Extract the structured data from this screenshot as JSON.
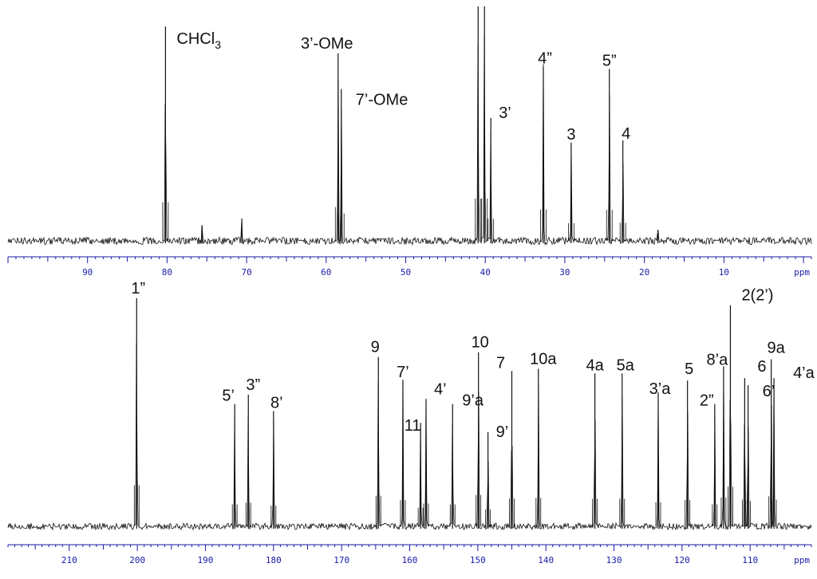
{
  "chart_data": [
    {
      "type": "line",
      "title": "",
      "xlabel": "ppm",
      "ylabel": "",
      "x_reversed": true,
      "xlim": [
        100,
        -1
      ],
      "tick_labels": [
        "90",
        "80",
        "70",
        "60",
        "50",
        "40",
        "30",
        "20",
        "10"
      ],
      "tick_values": [
        90,
        80,
        70,
        60,
        50,
        40,
        30,
        20,
        10
      ],
      "peaks": [
        {
          "x": 80.2,
          "height": 0.96,
          "label": "CHCl3",
          "label_main": "CHCl",
          "label_sub": "3"
        },
        {
          "x": 75.6,
          "height": 0.07,
          "label": ""
        },
        {
          "x": 70.6,
          "height": 0.1,
          "label": ""
        },
        {
          "x": 58.5,
          "height": 0.84,
          "label": "3’-OMe"
        },
        {
          "x": 58.1,
          "height": 0.68,
          "label": "7’-OMe"
        },
        {
          "x": 40.9,
          "height": 1.05,
          "label": ""
        },
        {
          "x": 40.1,
          "height": 1.05,
          "label": ""
        },
        {
          "x": 39.3,
          "height": 0.55,
          "label": "3’"
        },
        {
          "x": 32.7,
          "height": 0.78,
          "label": "4”"
        },
        {
          "x": 29.2,
          "height": 0.44,
          "label": "3"
        },
        {
          "x": 24.4,
          "height": 0.77,
          "label": "5”"
        },
        {
          "x": 22.7,
          "height": 0.45,
          "label": "4"
        },
        {
          "x": 18.3,
          "height": 0.05,
          "label": ""
        }
      ]
    },
    {
      "type": "line",
      "title": "",
      "xlabel": "ppm",
      "ylabel": "",
      "x_reversed": true,
      "xlim": [
        219,
        101
      ],
      "tick_labels": [
        "210",
        "200",
        "190",
        "180",
        "170",
        "160",
        "150",
        "140",
        "130",
        "120",
        "110"
      ],
      "tick_values": [
        210,
        200,
        190,
        180,
        170,
        160,
        150,
        140,
        130,
        120,
        110
      ],
      "peaks": [
        {
          "x": 200.1,
          "height": 0.97,
          "label": "1”"
        },
        {
          "x": 185.7,
          "height": 0.52,
          "label": "5’"
        },
        {
          "x": 183.7,
          "height": 0.56,
          "label": "3”"
        },
        {
          "x": 180.0,
          "height": 0.49,
          "label": "8’"
        },
        {
          "x": 164.6,
          "height": 0.72,
          "label": "9"
        },
        {
          "x": 161.0,
          "height": 0.62,
          "label": "7’"
        },
        {
          "x": 158.4,
          "height": 0.44,
          "label": "11"
        },
        {
          "x": 157.6,
          "height": 0.54,
          "label": "4’"
        },
        {
          "x": 153.7,
          "height": 0.52,
          "label": "9’a"
        },
        {
          "x": 149.9,
          "height": 0.74,
          "label": "10"
        },
        {
          "x": 148.5,
          "height": 0.4,
          "label": "9’"
        },
        {
          "x": 145.0,
          "height": 0.66,
          "label": "7"
        },
        {
          "x": 141.1,
          "height": 0.67,
          "label": "10a"
        },
        {
          "x": 132.8,
          "height": 0.65,
          "label": "4a"
        },
        {
          "x": 128.8,
          "height": 0.65,
          "label": "5a"
        },
        {
          "x": 123.5,
          "height": 0.57,
          "label": "3’a"
        },
        {
          "x": 119.2,
          "height": 0.62,
          "label": "5"
        },
        {
          "x": 115.2,
          "height": 0.52,
          "label": "2”"
        },
        {
          "x": 113.9,
          "height": 0.68,
          "label": "8’a"
        },
        {
          "x": 112.9,
          "height": 0.94,
          "label": "2(2’)"
        },
        {
          "x": 110.8,
          "height": 0.63,
          "label": "6"
        },
        {
          "x": 110.3,
          "height": 0.6,
          "label": "6’"
        },
        {
          "x": 106.9,
          "height": 0.71,
          "label": "9a"
        },
        {
          "x": 106.5,
          "height": 0.63,
          "label": "4’a"
        }
      ]
    }
  ]
}
